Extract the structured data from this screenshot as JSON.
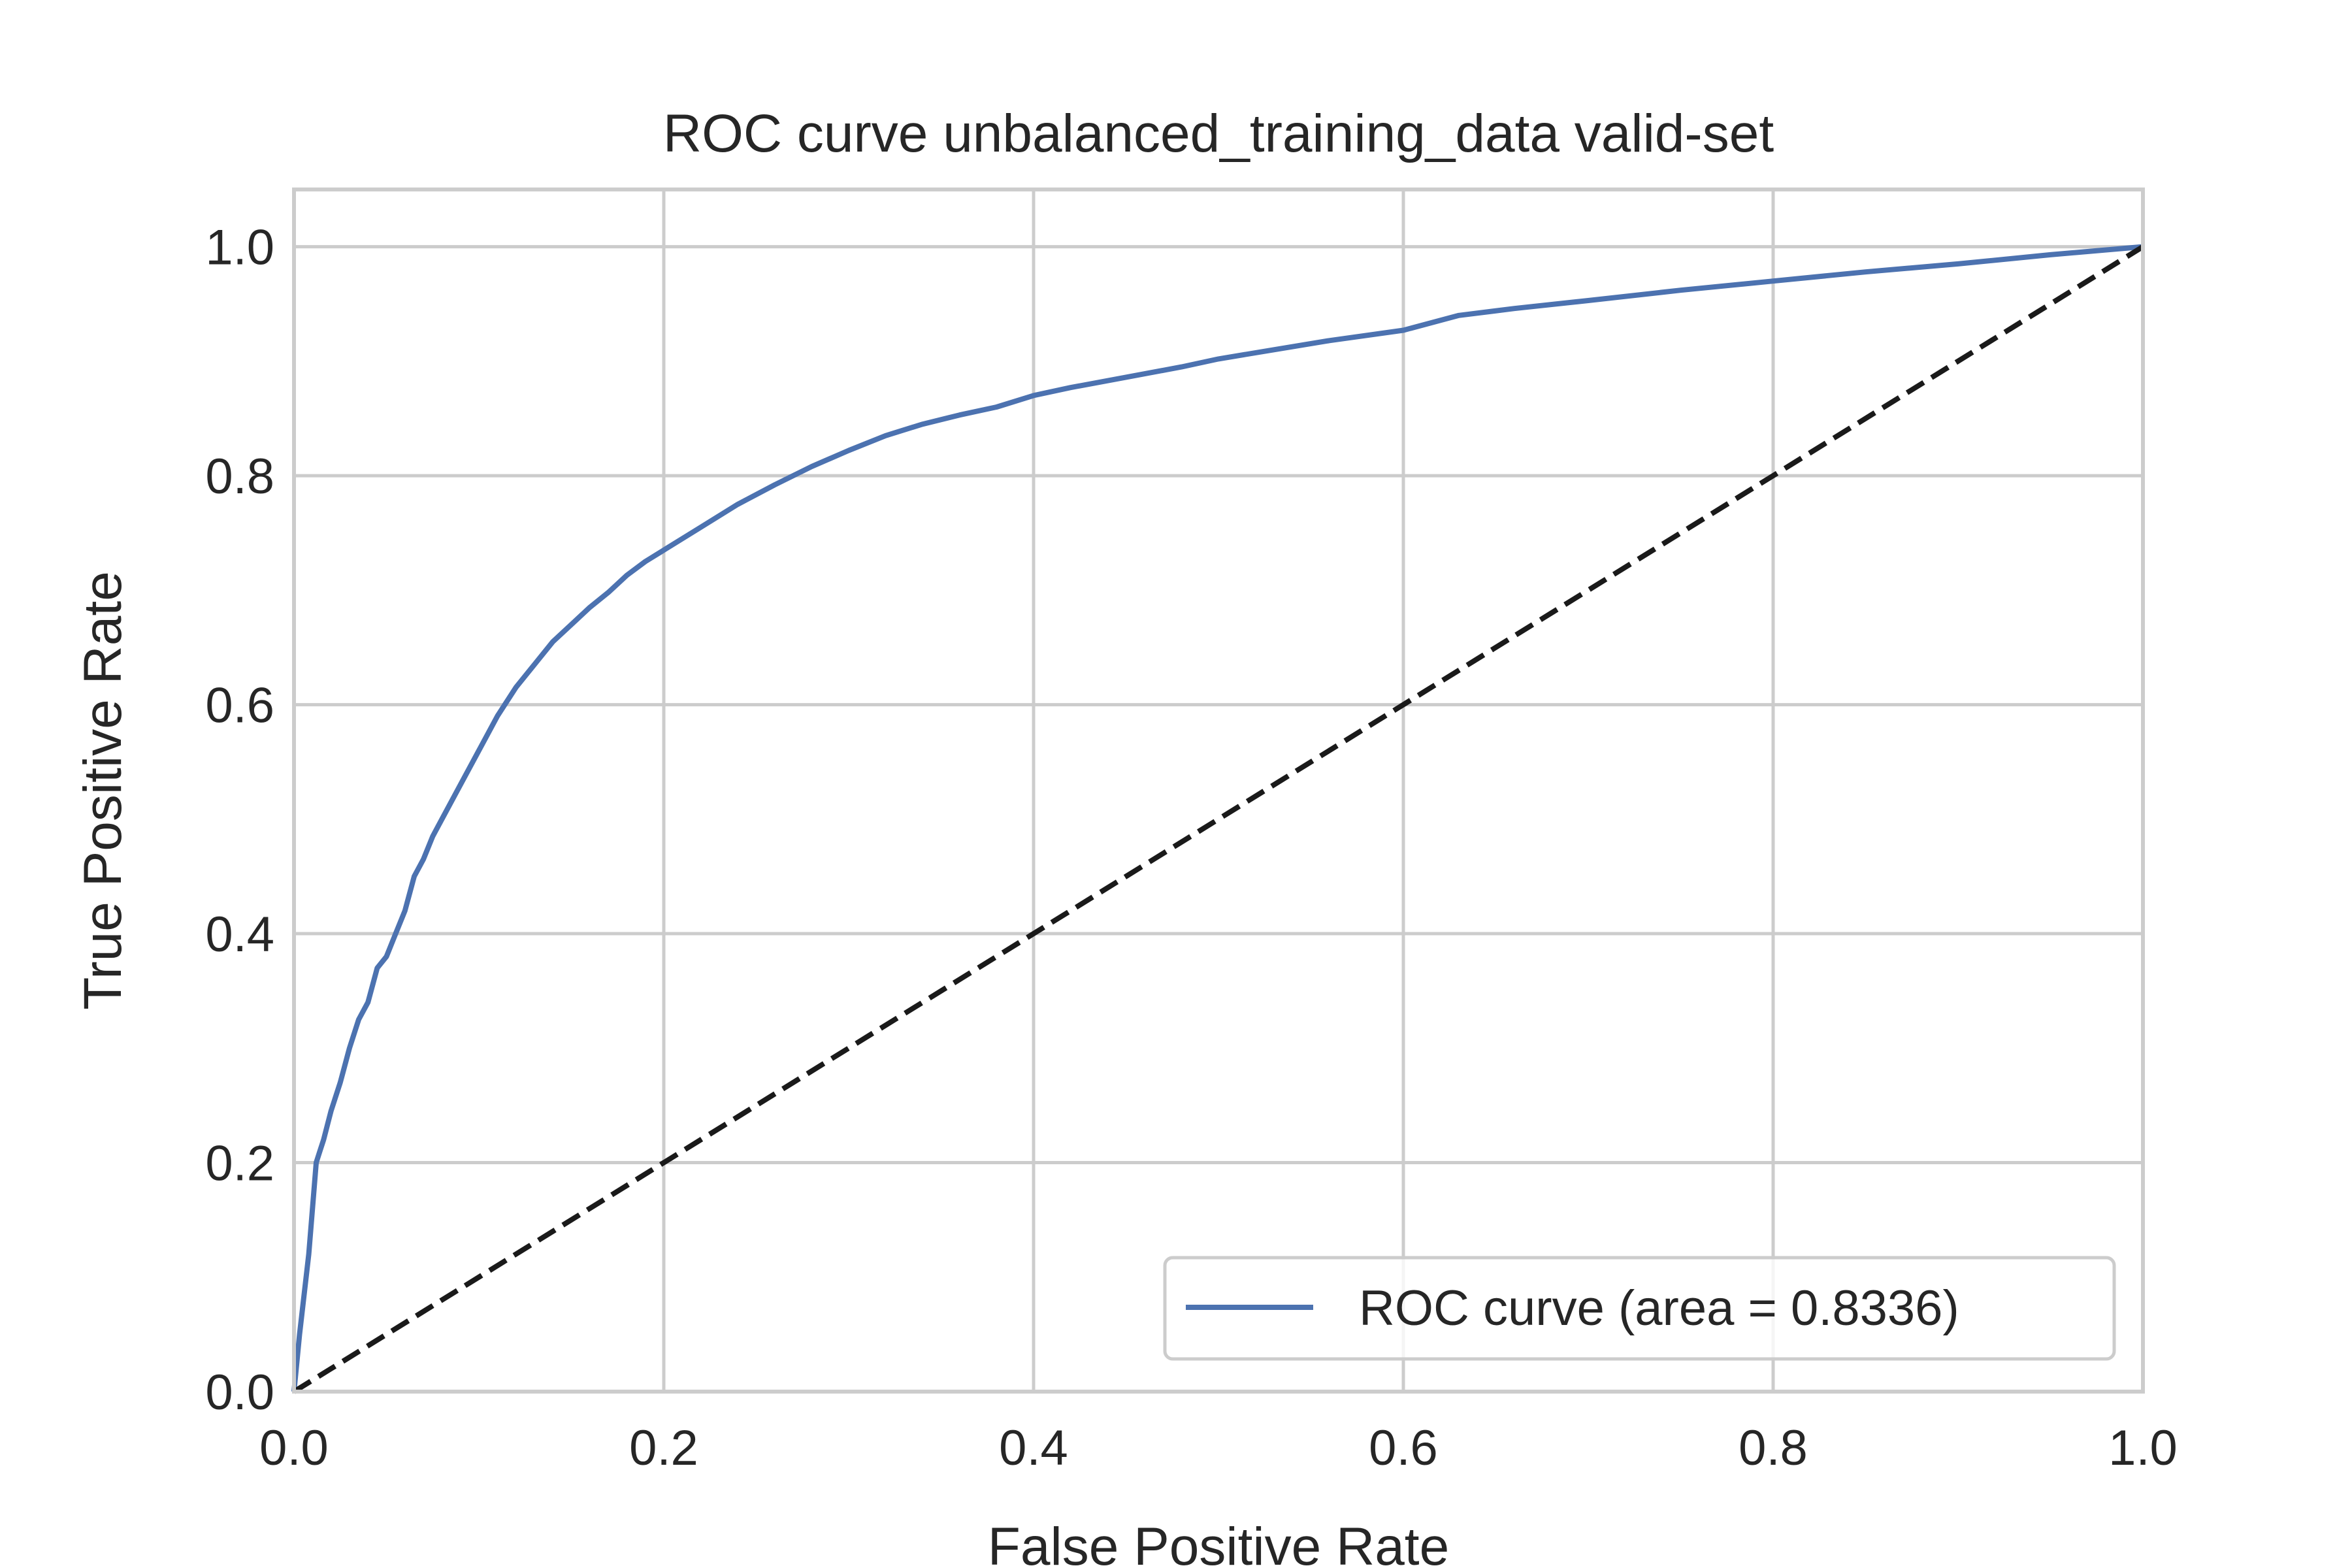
{
  "chart_data": {
    "type": "line",
    "title": "ROC curve unbalanced_training_data valid-set",
    "xlabel": "False Positive Rate",
    "ylabel": "True Positive Rate",
    "xlim": [
      0.0,
      1.0
    ],
    "ylim": [
      0.0,
      1.05
    ],
    "xticks": [
      "0.0",
      "0.2",
      "0.4",
      "0.6",
      "0.8",
      "1.0"
    ],
    "yticks": [
      "0.0",
      "0.2",
      "0.4",
      "0.6",
      "0.8",
      "1.0"
    ],
    "grid": true,
    "legend_position": "lower-right",
    "series": [
      {
        "name": "ROC curve (area = 0.8336)",
        "color": "#4c72b0",
        "style": "solid",
        "x": [
          0.0,
          0.003,
          0.008,
          0.012,
          0.014,
          0.016,
          0.02,
          0.025,
          0.03,
          0.035,
          0.04,
          0.045,
          0.05,
          0.055,
          0.06,
          0.065,
          0.07,
          0.075,
          0.08,
          0.09,
          0.1,
          0.11,
          0.12,
          0.13,
          0.14,
          0.15,
          0.16,
          0.17,
          0.18,
          0.19,
          0.2,
          0.22,
          0.24,
          0.26,
          0.28,
          0.3,
          0.32,
          0.34,
          0.36,
          0.38,
          0.4,
          0.42,
          0.45,
          0.48,
          0.5,
          0.53,
          0.56,
          0.6,
          0.63,
          0.66,
          0.7,
          0.75,
          0.8,
          0.85,
          0.9,
          0.95,
          1.0
        ],
        "y": [
          0.0,
          0.05,
          0.12,
          0.2,
          0.21,
          0.22,
          0.245,
          0.27,
          0.3,
          0.325,
          0.34,
          0.37,
          0.38,
          0.4,
          0.42,
          0.45,
          0.465,
          0.485,
          0.5,
          0.53,
          0.56,
          0.59,
          0.615,
          0.635,
          0.655,
          0.67,
          0.685,
          0.698,
          0.713,
          0.725,
          0.735,
          0.755,
          0.775,
          0.792,
          0.808,
          0.822,
          0.835,
          0.845,
          0.853,
          0.86,
          0.87,
          0.877,
          0.886,
          0.895,
          0.902,
          0.91,
          0.918,
          0.927,
          0.94,
          0.946,
          0.953,
          0.962,
          0.97,
          0.978,
          0.985,
          0.993,
          1.0
        ]
      },
      {
        "name": "",
        "color": "#1a1a1a",
        "style": "dashed",
        "x": [
          0.0,
          1.0
        ],
        "y": [
          0.0,
          1.0
        ]
      }
    ]
  }
}
